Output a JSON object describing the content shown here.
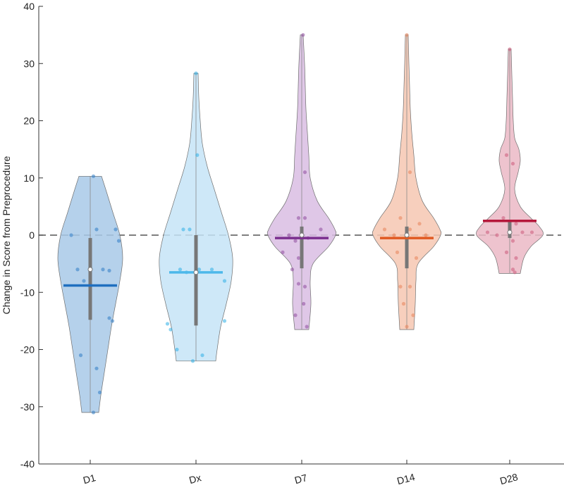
{
  "chart_data": {
    "type": "violin",
    "title": "",
    "xlabel": "",
    "ylabel": "Change in Score from Preprocedure",
    "ylim": [
      -40,
      40
    ],
    "yticks": [
      40,
      30,
      20,
      10,
      0,
      -10,
      -20,
      -30,
      -40
    ],
    "reference_line": 0,
    "categories": [
      "D1",
      "Dx",
      "D7",
      "D14",
      "D28"
    ],
    "series": [
      {
        "name": "D1",
        "color": "#2e7bc4",
        "fill": "#a8c9e8",
        "line_color": "#1f6fbf",
        "mean": -8.8,
        "median": -6,
        "q1": -14.8,
        "q3": -0.5,
        "min": -31,
        "max": 10.3,
        "profile": [
          [
            10.3,
            0.16
          ],
          [
            8,
            0.22
          ],
          [
            4,
            0.32
          ],
          [
            0,
            0.42
          ],
          [
            -4,
            0.46
          ],
          [
            -8,
            0.42
          ],
          [
            -12,
            0.36
          ],
          [
            -16,
            0.3
          ],
          [
            -20,
            0.25
          ],
          [
            -24,
            0.2
          ],
          [
            -28,
            0.15
          ],
          [
            -31,
            0.12
          ]
        ],
        "points": [
          [
            -0.3,
            0
          ],
          [
            0.05,
            10.3
          ],
          [
            -0.2,
            -6
          ],
          [
            0.2,
            -6
          ],
          [
            0.3,
            -6.2
          ],
          [
            0.1,
            1
          ],
          [
            0.4,
            1
          ],
          [
            0.45,
            -1
          ],
          [
            -0.1,
            -8
          ],
          [
            0.3,
            -14.5
          ],
          [
            0.35,
            -15
          ],
          [
            0.1,
            -23.3
          ],
          [
            0.15,
            -27.5
          ],
          [
            -0.15,
            -21
          ],
          [
            0.05,
            -31
          ]
        ]
      },
      {
        "name": "Dx",
        "color": "#2eaee5",
        "fill": "#c6e4f7",
        "line_color": "#4db8ea",
        "mean": -6.5,
        "median": -6.5,
        "q1": -15.8,
        "q3": 0,
        "min": -22,
        "max": 28.3,
        "profile": [
          [
            28.3,
            0.03
          ],
          [
            24,
            0.04
          ],
          [
            20,
            0.06
          ],
          [
            16,
            0.09
          ],
          [
            12,
            0.16
          ],
          [
            8,
            0.26
          ],
          [
            4,
            0.36
          ],
          [
            0,
            0.46
          ],
          [
            -4,
            0.52
          ],
          [
            -8,
            0.5
          ],
          [
            -12,
            0.43
          ],
          [
            -16,
            0.35
          ],
          [
            -20,
            0.3
          ],
          [
            -22,
            0.28
          ]
        ],
        "points": [
          [
            0.0,
            28.3
          ],
          [
            0.02,
            14
          ],
          [
            -0.2,
            1
          ],
          [
            -0.1,
            1
          ],
          [
            -0.25,
            -6
          ],
          [
            -0.15,
            -6.5
          ],
          [
            0.05,
            -6
          ],
          [
            0.25,
            -6
          ],
          [
            0.45,
            -8
          ],
          [
            -0.45,
            -15.5
          ],
          [
            -0.4,
            -16.5
          ],
          [
            0.45,
            -15
          ],
          [
            -0.3,
            -20
          ],
          [
            0.1,
            -21
          ],
          [
            -0.05,
            -22
          ]
        ]
      },
      {
        "name": "D7",
        "color": "#8e4b9e",
        "fill": "#d9bde3",
        "line_color": "#7b2f8f",
        "mean": -0.5,
        "median": 0,
        "q1": -5.8,
        "q3": 1.5,
        "min": -16.5,
        "max": 35,
        "profile": [
          [
            35,
            0.02
          ],
          [
            30,
            0.04
          ],
          [
            26,
            0.05
          ],
          [
            22,
            0.06
          ],
          [
            18,
            0.08
          ],
          [
            14,
            0.1
          ],
          [
            10,
            0.12
          ],
          [
            6,
            0.22
          ],
          [
            3,
            0.38
          ],
          [
            1,
            0.47
          ],
          [
            0,
            0.48
          ],
          [
            -2,
            0.38
          ],
          [
            -5,
            0.16
          ],
          [
            -8,
            0.12
          ],
          [
            -12,
            0.13
          ],
          [
            -16.5,
            0.1
          ]
        ],
        "points": [
          [
            0.02,
            35
          ],
          [
            0.05,
            11
          ],
          [
            -0.05,
            3
          ],
          [
            0.05,
            3
          ],
          [
            -0.2,
            0
          ],
          [
            -0.1,
            -1
          ],
          [
            0.1,
            -0.5
          ],
          [
            0.3,
            1
          ],
          [
            -0.3,
            -3
          ],
          [
            -0.05,
            -4
          ],
          [
            -0.15,
            -6
          ],
          [
            0.05,
            -9
          ],
          [
            -0.05,
            -8.5
          ],
          [
            0.03,
            -12
          ],
          [
            -0.1,
            -14
          ],
          [
            0.08,
            -16
          ]
        ]
      },
      {
        "name": "D14",
        "color": "#e8845a",
        "fill": "#f6c7b1",
        "line_color": "#e05a22",
        "mean": -0.5,
        "median": 0,
        "q1": -5.8,
        "q3": 1.5,
        "min": -16.5,
        "max": 35,
        "profile": [
          [
            35,
            0.02
          ],
          [
            30,
            0.03
          ],
          [
            26,
            0.04
          ],
          [
            22,
            0.05
          ],
          [
            18,
            0.07
          ],
          [
            14,
            0.1
          ],
          [
            10,
            0.13
          ],
          [
            6,
            0.22
          ],
          [
            3,
            0.38
          ],
          [
            1,
            0.47
          ],
          [
            0,
            0.48
          ],
          [
            -2,
            0.38
          ],
          [
            -5,
            0.16
          ],
          [
            -8,
            0.13
          ],
          [
            -12,
            0.12
          ],
          [
            -16.5,
            0.1
          ]
        ],
        "points": [
          [
            0.0,
            35
          ],
          [
            0.05,
            11
          ],
          [
            -0.1,
            3
          ],
          [
            0.2,
            2
          ],
          [
            -0.35,
            1
          ],
          [
            -0.2,
            0
          ],
          [
            0.3,
            0
          ],
          [
            0.05,
            1
          ],
          [
            -0.15,
            -3
          ],
          [
            0.15,
            -4
          ],
          [
            -0.1,
            -9
          ],
          [
            0.05,
            -9
          ],
          [
            -0.05,
            -12
          ],
          [
            0.1,
            -14
          ],
          [
            0.0,
            -16
          ]
        ]
      },
      {
        "name": "D28",
        "color": "#cc5a7a",
        "fill": "#ebb9c6",
        "line_color": "#b5173a",
        "mean": 2.5,
        "median": 0.5,
        "q1": -0.5,
        "q3": 2.5,
        "min": -6.7,
        "max": 32.5,
        "profile": [
          [
            32.5,
            0.02
          ],
          [
            28,
            0.03
          ],
          [
            24,
            0.04
          ],
          [
            20,
            0.05
          ],
          [
            17,
            0.07
          ],
          [
            15,
            0.13
          ],
          [
            13,
            0.15
          ],
          [
            11,
            0.12
          ],
          [
            8,
            0.07
          ],
          [
            5,
            0.15
          ],
          [
            3,
            0.3
          ],
          [
            1.5,
            0.42
          ],
          [
            0,
            0.47
          ],
          [
            -2,
            0.3
          ],
          [
            -4,
            0.2
          ],
          [
            -6.7,
            0.15
          ]
        ],
        "points": [
          [
            0.0,
            32.5
          ],
          [
            -0.05,
            14
          ],
          [
            0.05,
            12.5
          ],
          [
            -0.1,
            3
          ],
          [
            0.1,
            2
          ],
          [
            -0.35,
            0.5
          ],
          [
            -0.2,
            0
          ],
          [
            0.2,
            0.5
          ],
          [
            0.35,
            0.5
          ],
          [
            0.05,
            -1
          ],
          [
            -0.05,
            -3
          ],
          [
            0.1,
            -4
          ],
          [
            0.05,
            -6
          ],
          [
            0.08,
            -6.5
          ]
        ]
      }
    ]
  }
}
